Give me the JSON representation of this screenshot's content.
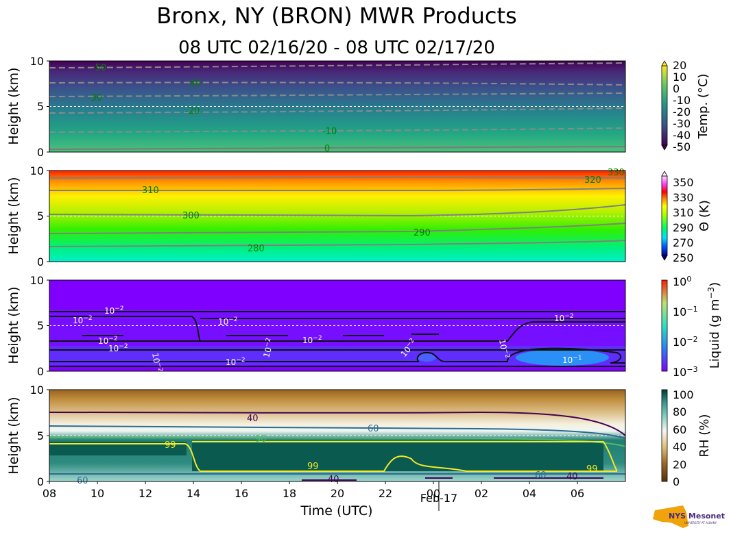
{
  "title": "Bronx, NY (BRON) MWR Products",
  "subtitle": "08 UTC 02/16/20 - 08 UTC 02/17/20",
  "logo": {
    "text": "NYS Mesonet",
    "subtext": "UNIVERSITY AT ALBANY"
  },
  "colors": {
    "accent_logo": "#f0a30a",
    "logo_text": "#4b2a7b"
  },
  "chart_data": [
    {
      "type": "heatmap",
      "panel": "temperature",
      "ylabel": "Height (km)",
      "yticks": [
        "0",
        "5",
        "10"
      ],
      "ylim": [
        0,
        10
      ],
      "colorbar_label": "Temp. ($^\\circ$C)",
      "colorbar_ticks": [
        "20",
        "10",
        "0",
        "-10",
        "-20",
        "-30",
        "-40",
        "-50"
      ],
      "contour_labels": [
        "-50",
        "-40",
        "-30",
        "-20",
        "-10",
        "0"
      ],
      "contours": [
        {
          "level": "0",
          "height": 0.1
        },
        {
          "level": "-10",
          "height": 2.2
        },
        {
          "level": "-20",
          "height": 4.3
        },
        {
          "level": "-30",
          "height": 6.1
        },
        {
          "level": "-40",
          "height": 7.7
        },
        {
          "level": "-50",
          "height": 9.4
        }
      ]
    },
    {
      "type": "heatmap",
      "panel": "potential_temperature",
      "ylabel": "Height (km)",
      "yticks": [
        "0",
        "5",
        "10"
      ],
      "ylim": [
        0,
        10
      ],
      "colorbar_label": "Θ (K)",
      "colorbar_ticks": [
        "350",
        "330",
        "310",
        "290",
        "270",
        "250"
      ],
      "contour_labels": [
        "280",
        "290",
        "300",
        "310",
        "320",
        "330"
      ],
      "contours": [
        {
          "level": "280",
          "height": 1.6
        },
        {
          "level": "290",
          "height": 3.2
        },
        {
          "level": "300",
          "height": 5.1
        },
        {
          "level": "310",
          "height": 7.7
        },
        {
          "level": "320",
          "height": 9.2
        }
      ]
    },
    {
      "type": "heatmap",
      "panel": "liquid",
      "ylabel": "Height (km)",
      "yticks": [
        "0",
        "5",
        "10"
      ],
      "ylim": [
        0,
        10
      ],
      "colorbar_label": "Liquid (g m$^{-3}$)",
      "colorbar_ticks": [
        "10^0",
        "10^-1",
        "10^-2",
        "10^-3"
      ],
      "contour_labels": [
        "10^-2",
        "10^-1"
      ]
    },
    {
      "type": "heatmap",
      "panel": "relative_humidity",
      "ylabel": "Height (km)",
      "yticks": [
        "0",
        "5",
        "10"
      ],
      "ylim": [
        0,
        10
      ],
      "colorbar_label": "RH (%)",
      "colorbar_ticks": [
        "100",
        "80",
        "60",
        "40",
        "20",
        "0"
      ],
      "contour_labels": [
        "40",
        "60",
        "90",
        "99"
      ],
      "xlabel": "Time (UTC)",
      "xticks": [
        "08",
        "10",
        "12",
        "14",
        "16",
        "18",
        "20",
        "22",
        "00",
        "02",
        "04",
        "06"
      ],
      "date_label": "Feb-17"
    }
  ]
}
